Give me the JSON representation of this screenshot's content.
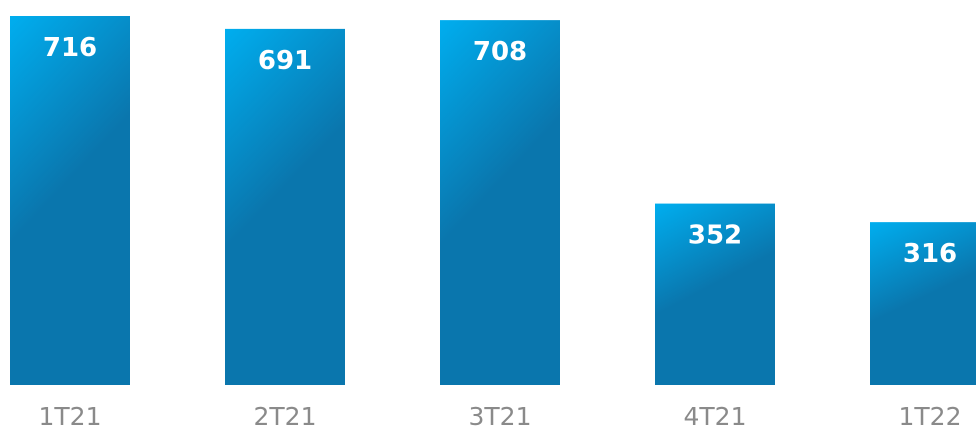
{
  "chart_data": {
    "type": "bar",
    "categories": [
      "1T21",
      "2T21",
      "3T21",
      "4T21",
      "1T22"
    ],
    "values": [
      716,
      691,
      708,
      352,
      316
    ],
    "data_labels": [
      "716",
      "691",
      "708",
      "352",
      "316"
    ],
    "ylim": [
      0,
      716
    ],
    "grid": false,
    "legend": "none"
  },
  "colors": {
    "bar_top": "#00aeef",
    "bar_bottom": "#0a76ad",
    "bar_label": "#ffffff",
    "tick_label": "#8a8a8a",
    "background": "#ffffff"
  }
}
